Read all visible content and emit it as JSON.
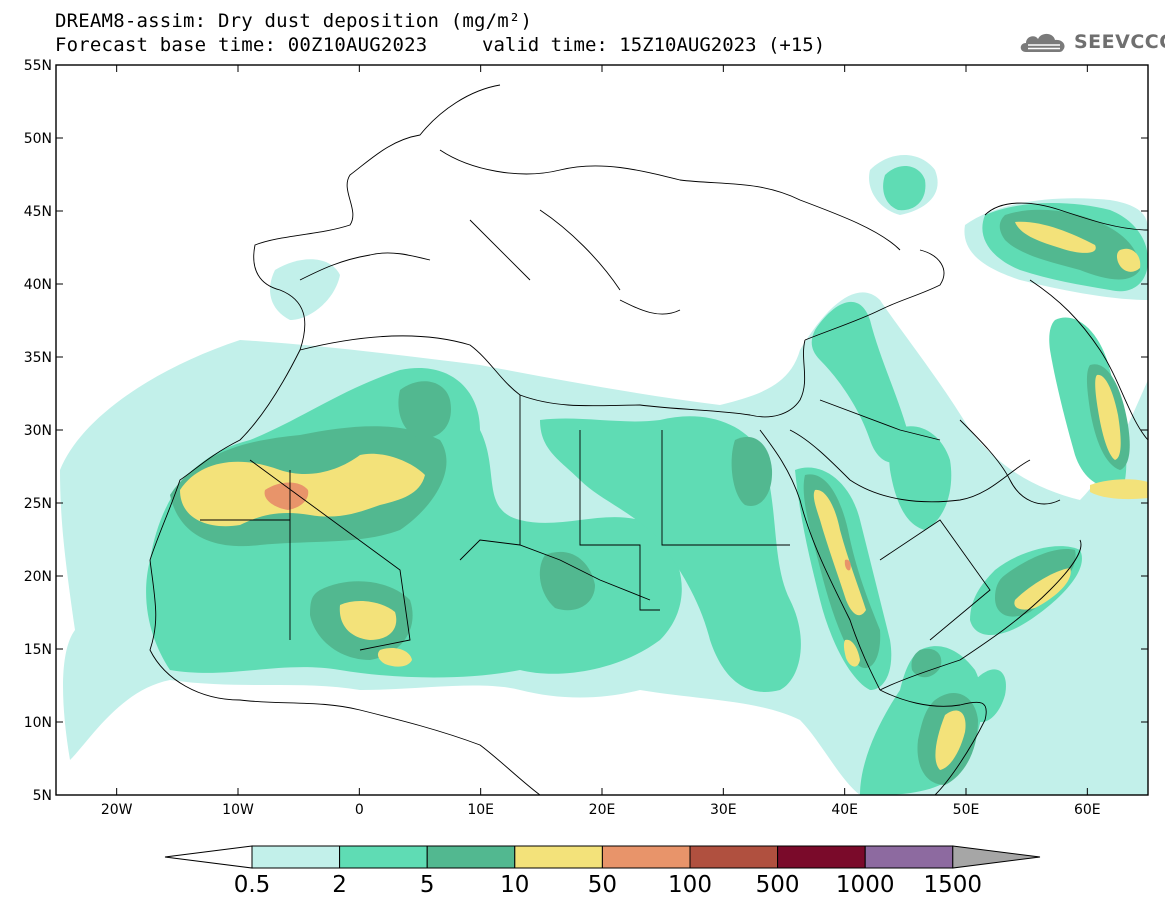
{
  "title": {
    "line1": "DREAM8-assim: Dry dust deposition (mg/m²)",
    "line2_base": "Forecast base time: 00Z10AUG2023",
    "line2_valid": "valid time: 15Z10AUG2023 (+15)"
  },
  "logo": {
    "text": "SEEVCCC",
    "icon": "cloud-icon"
  },
  "map": {
    "lon_range": [
      -25,
      65
    ],
    "lat_range": [
      5,
      55
    ],
    "lat_labels": [
      "5N",
      "10N",
      "15N",
      "20N",
      "25N",
      "30N",
      "35N",
      "40N",
      "45N",
      "50N",
      "55N"
    ],
    "lat_values": [
      5,
      10,
      15,
      20,
      25,
      30,
      35,
      40,
      45,
      50,
      55
    ],
    "lon_labels": [
      "20W",
      "10W",
      "0",
      "10E",
      "20E",
      "30E",
      "40E",
      "50E",
      "60E"
    ],
    "lon_values": [
      -20,
      -10,
      0,
      10,
      20,
      30,
      40,
      50,
      60
    ]
  },
  "colorbar": {
    "labels": [
      "0.5",
      "2",
      "5",
      "10",
      "50",
      "100",
      "500",
      "1000",
      "1500"
    ],
    "colors": [
      "#c2f0ea",
      "#5fdcb4",
      "#52b890",
      "#f3e27a",
      "#e8946a",
      "#b0503f",
      "#7a0a2a",
      "#8d6aa0",
      "#a6a6a6"
    ]
  }
}
